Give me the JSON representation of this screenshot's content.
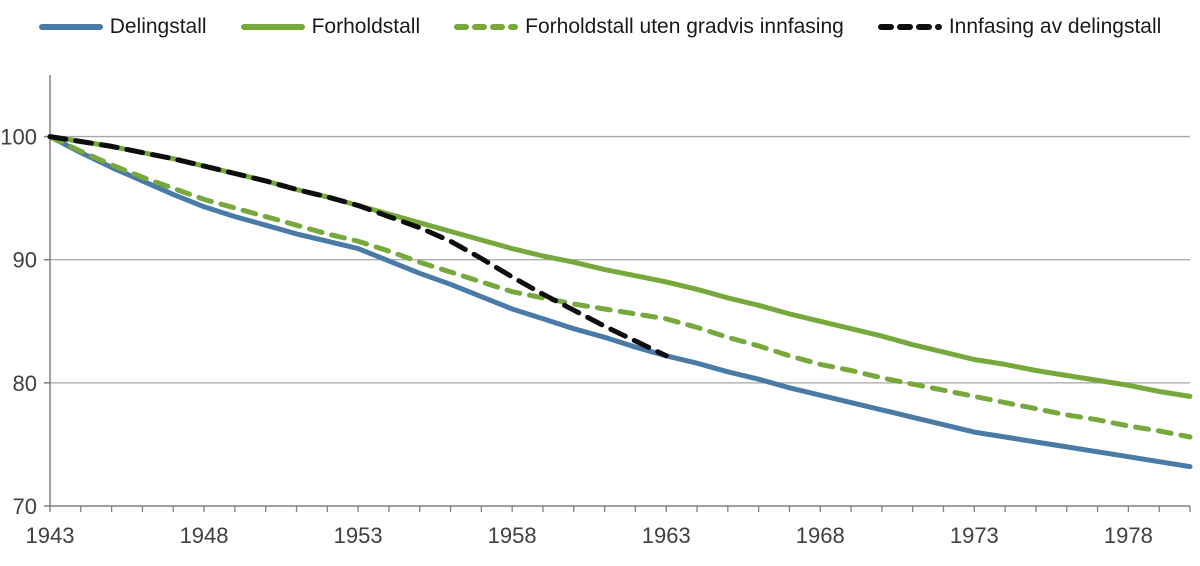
{
  "figure": {
    "background": "#ffffff",
    "description_visible_text_only": true
  },
  "colors": {
    "blue": "#4a7ba7",
    "green": "#76a83c",
    "black": "#0d0d0d",
    "grid": "#a6a6a6",
    "axis": "#808080",
    "tick_text": "#404040",
    "legend_text": "#1a1a1a"
  },
  "chart_data": {
    "type": "line",
    "title": "",
    "xlabel": "",
    "ylabel": "",
    "xlim": [
      1943,
      1980
    ],
    "ylim": [
      70,
      105
    ],
    "yticks": [
      70,
      80,
      90,
      100
    ],
    "xtick_labels": [
      1943,
      1948,
      1953,
      1958,
      1963,
      1968,
      1973,
      1978
    ],
    "minor_xtick_every_years": 1,
    "grid": "horizontal",
    "legend_position": "top",
    "x": [
      1943,
      1944,
      1945,
      1946,
      1947,
      1948,
      1949,
      1950,
      1951,
      1952,
      1953,
      1954,
      1955,
      1956,
      1957,
      1958,
      1959,
      1960,
      1961,
      1962,
      1963,
      1964,
      1965,
      1966,
      1967,
      1968,
      1969,
      1970,
      1971,
      1972,
      1973,
      1974,
      1975,
      1976,
      1977,
      1978,
      1979,
      1980
    ],
    "series": [
      {
        "name": "Delingstall",
        "color": "#4a7ba7",
        "line_style": "solid",
        "values": [
          100,
          98.7,
          97.5,
          96.4,
          95.3,
          94.3,
          93.5,
          92.8,
          92.1,
          91.5,
          90.9,
          89.9,
          88.9,
          88,
          87,
          86,
          85.2,
          84.4,
          83.7,
          82.9,
          82.2,
          81.6,
          80.9,
          80.3,
          79.6,
          79,
          78.4,
          77.8,
          77.2,
          76.6,
          76,
          75.6,
          75.2,
          74.8,
          74.4,
          74,
          73.6,
          73.2
        ]
      },
      {
        "name": "Forholdstall",
        "color": "#76a83c",
        "line_style": "solid",
        "values": [
          100,
          99.6,
          99.2,
          98.7,
          98.2,
          97.6,
          97,
          96.4,
          95.7,
          95.1,
          94.4,
          93.7,
          93,
          92.3,
          91.6,
          90.9,
          90.3,
          89.8,
          89.2,
          88.7,
          88.2,
          87.6,
          86.9,
          86.3,
          85.6,
          85,
          84.4,
          83.8,
          83.1,
          82.5,
          81.9,
          81.5,
          81,
          80.6,
          80.2,
          79.8,
          79.3,
          78.9
        ]
      },
      {
        "name": "Forholdstall uten gradvis innfasing",
        "color": "#76a83c",
        "line_style": "dashed",
        "values": [
          100,
          98.8,
          97.7,
          96.7,
          95.8,
          94.9,
          94.2,
          93.5,
          92.8,
          92.1,
          91.5,
          90.7,
          89.8,
          89,
          88.2,
          87.4,
          86.9,
          86.4,
          86,
          85.6,
          85.2,
          84.5,
          83.7,
          83,
          82.2,
          81.5,
          81,
          80.4,
          79.9,
          79.4,
          78.9,
          78.4,
          77.9,
          77.4,
          77,
          76.5,
          76.1,
          75.6
        ]
      },
      {
        "name": "Innfasing av delingstall",
        "color": "#0d0d0d",
        "line_style": "dashed",
        "values": [
          100,
          99.6,
          99.2,
          98.7,
          98.2,
          97.6,
          97,
          96.4,
          95.7,
          95.1,
          94.4,
          93.5,
          92.6,
          91.5,
          90.1,
          88.6,
          87.2,
          85.9,
          84.6,
          83.4,
          82.2,
          null,
          null,
          null,
          null,
          null,
          null,
          null,
          null,
          null,
          null,
          null,
          null,
          null,
          null,
          null,
          null,
          null
        ]
      }
    ]
  }
}
